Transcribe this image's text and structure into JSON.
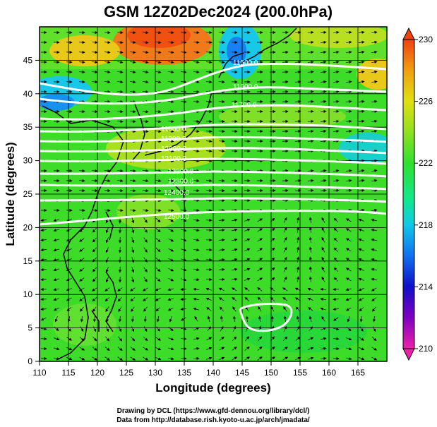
{
  "title": "GSM 12Z02Dec2024 (200.0hPa)",
  "x_axis": {
    "label": "Longitude (degrees)",
    "min": 110,
    "max": 170,
    "ticks": [
      110,
      115,
      120,
      125,
      130,
      135,
      140,
      145,
      150,
      155,
      160,
      165
    ]
  },
  "y_axis": {
    "label": "Latitude  (degrees)",
    "min": 0,
    "max": 50,
    "ticks": [
      0,
      5,
      10,
      15,
      20,
      25,
      30,
      35,
      40,
      45
    ]
  },
  "colorbar": {
    "min": 210,
    "max": 230,
    "labels": [
      230,
      226,
      222,
      218,
      214,
      210
    ],
    "colors": [
      "#ee22aa",
      "#8000c0",
      "#1010c8",
      "#1070f0",
      "#10c8e8",
      "#10e890",
      "#30e030",
      "#90e020",
      "#e0e010",
      "#f0a010",
      "#f04010"
    ]
  },
  "contour_labels": [
    "11500.0",
    "11600.0",
    "11700.0",
    "11800.0",
    "11900.0",
    "12000.0",
    "12100.0",
    "12200.0",
    "12300.0",
    "12400.0",
    "12500.0"
  ],
  "credits": {
    "line1": "Drawing by DCL (https://www.gfd-dennou.org/library/dcl/)",
    "line2": "Data from http://database.rish.kyoto-u.ac.jp/arch/jmadata/"
  }
}
